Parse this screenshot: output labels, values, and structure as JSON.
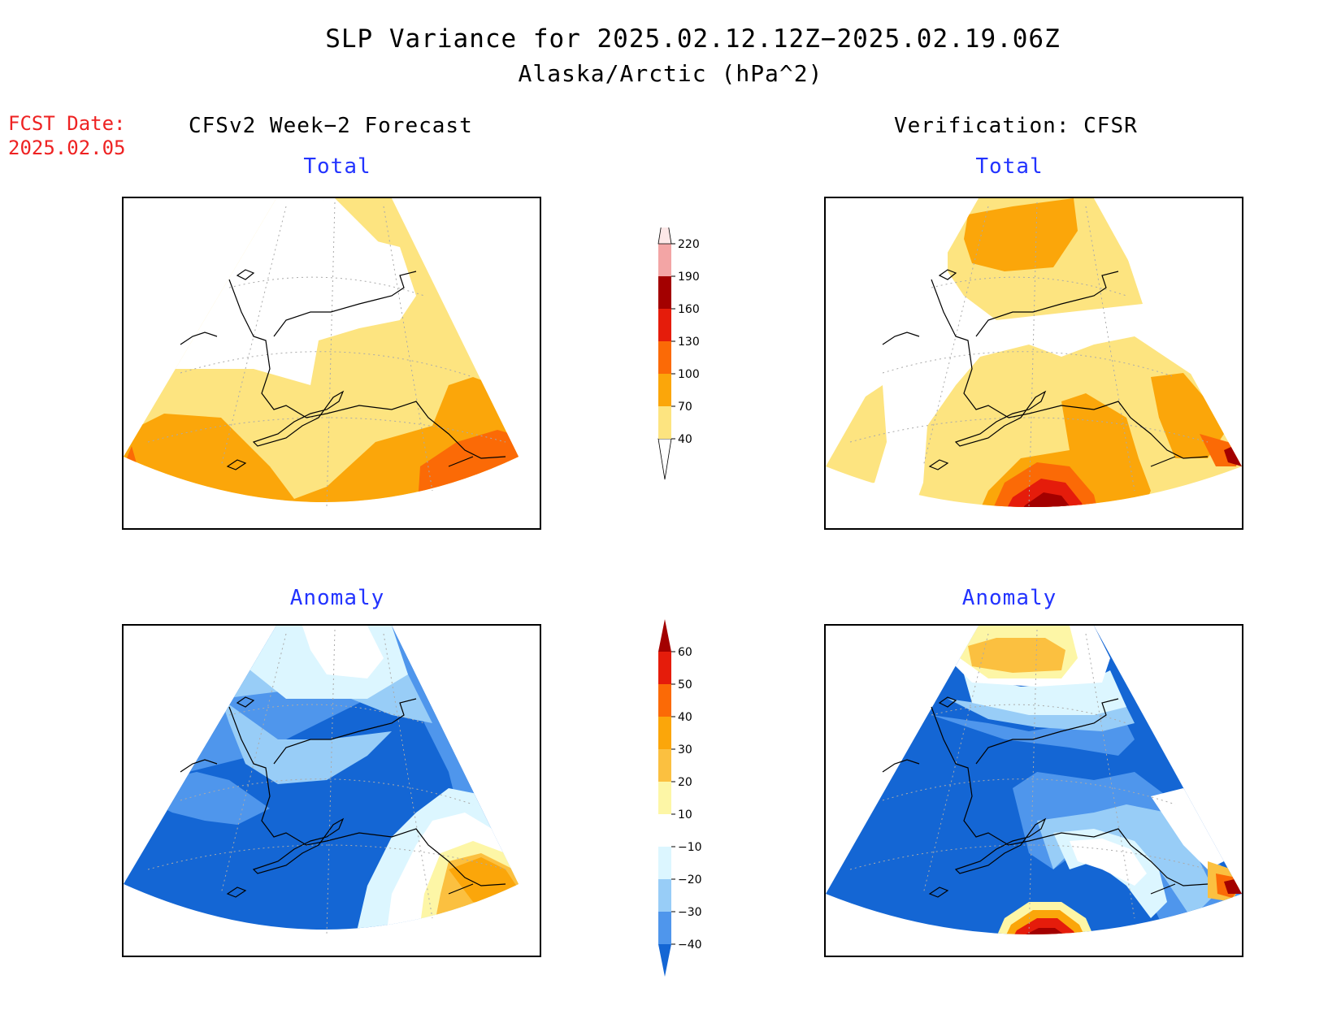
{
  "title": "SLP Variance for 2025.02.12.12Z−2025.02.19.06Z",
  "subtitle": "Alaska/Arctic (hPa^2)",
  "fcst_date_label": "FCST Date:",
  "fcst_date_value": "2025.02.05",
  "left_column_header": "CFSv2 Week−2 Forecast",
  "right_column_header": "Verification: CFSR",
  "panels": {
    "forecast_total": {
      "title": "Total"
    },
    "verification_total": {
      "title": "Total"
    },
    "forecast_anomaly": {
      "title": "Anomaly"
    },
    "verification_anomaly": {
      "title": "Anomaly"
    }
  },
  "colorbar_total": {
    "levels": [
      "40",
      "70",
      "100",
      "130",
      "160",
      "190",
      "220"
    ],
    "colors": [
      "#ffffff",
      "#fde480",
      "#fba60a",
      "#fb6a06",
      "#e51c0b",
      "#a30000",
      "#f3a5a5",
      "#fde8e8"
    ]
  },
  "colorbar_anomaly": {
    "levels": [
      "60",
      "50",
      "40",
      "30",
      "20",
      "10",
      "−10",
      "−20",
      "−30",
      "−40"
    ],
    "colors": [
      "#a30000",
      "#e51c0b",
      "#fb6a06",
      "#fba60a",
      "#fbc040",
      "#fdf6a6",
      "#ffffff",
      "#dcf6ff",
      "#98cdf7",
      "#4f96ec",
      "#1466d4"
    ]
  },
  "map_colors": {
    "white": "#ffffff",
    "total_c1": "#fde480",
    "total_c2": "#fba60a",
    "total_c3": "#fb6a06",
    "total_c4": "#e51c0b",
    "total_c5": "#a30000",
    "total_c6": "#f3a5a5",
    "total_c7": "#fde8e8",
    "anom_neg10": "#dcf6ff",
    "anom_neg20": "#98cdf7",
    "anom_neg30": "#4f96ec",
    "anom_neg40": "#1466d4",
    "anom_pos10": "#fdf6a6",
    "anom_pos20": "#fbc040",
    "anom_pos30": "#fba60a",
    "anom_pos40": "#fb6a06",
    "anom_pos50": "#e51c0b",
    "anom_pos60": "#a30000"
  }
}
